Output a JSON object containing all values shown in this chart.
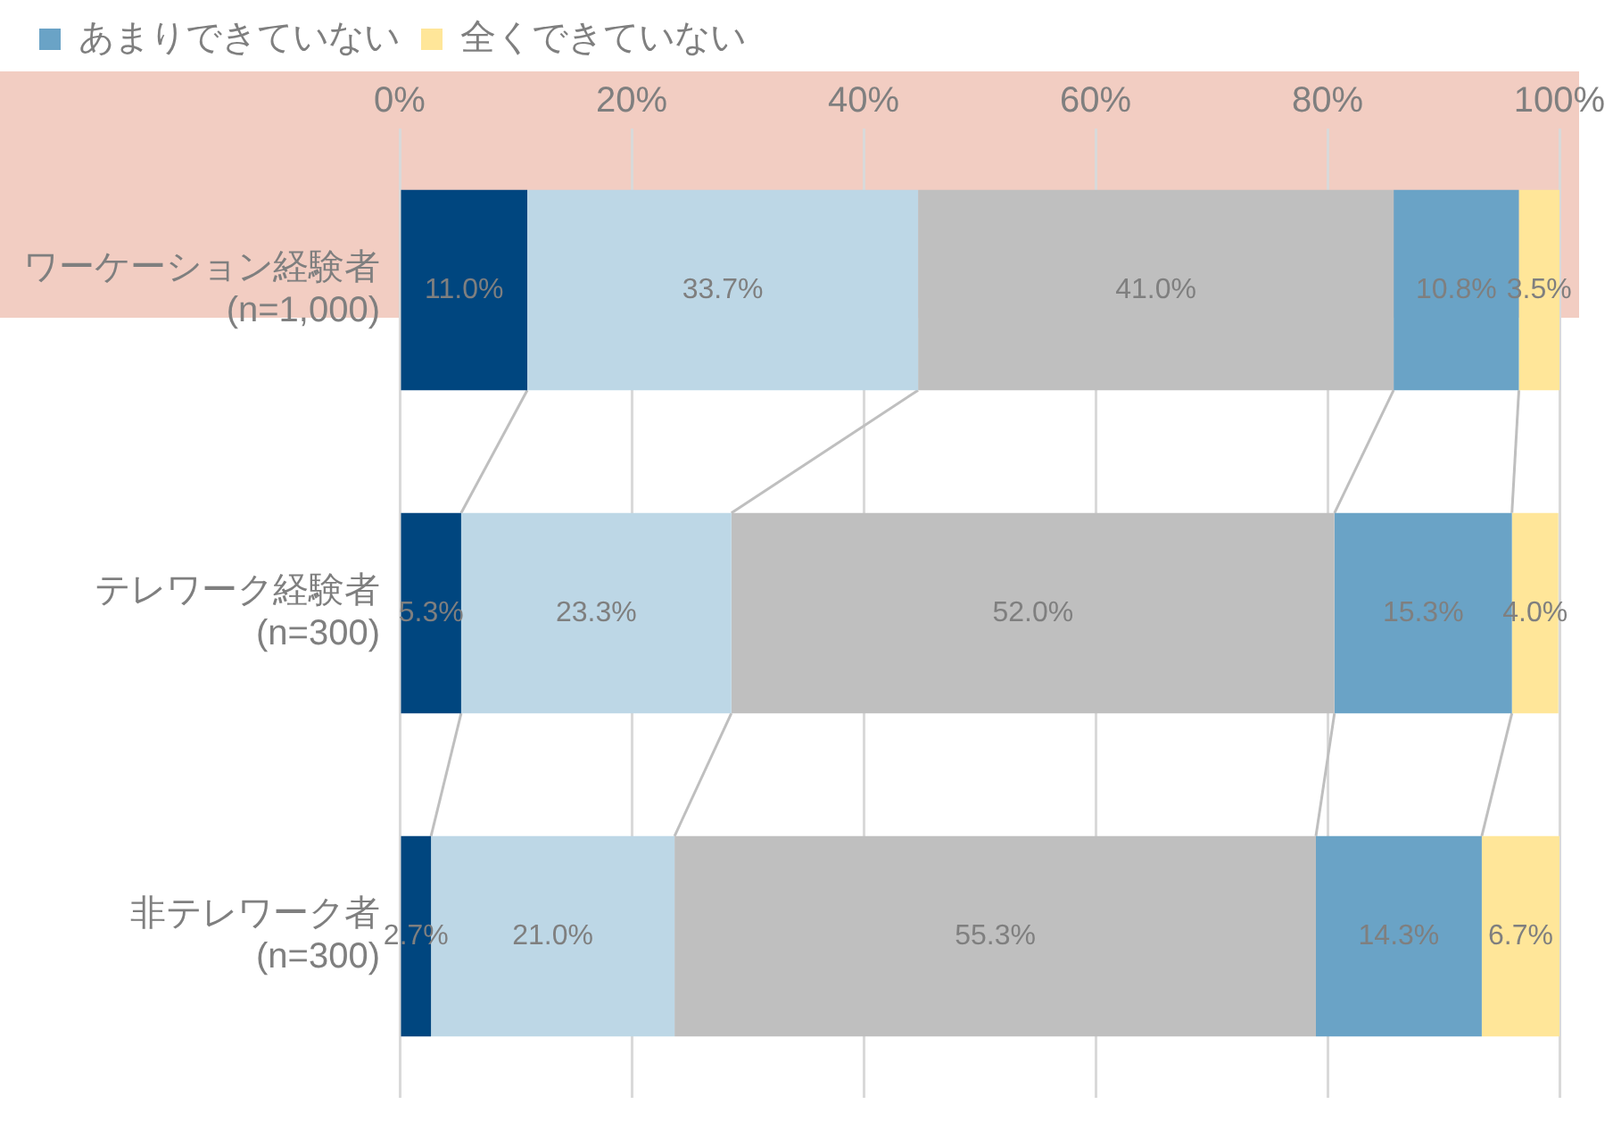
{
  "chart_data": {
    "type": "bar",
    "orientation": "horizontal",
    "stacked": true,
    "categories": [
      "ワーケーション経験者\n(n=1,000)",
      "テレワーク経験者\n(n=300)",
      "非テレワーク者\n(n=300)"
    ],
    "series": [
      {
        "color": "#00467f",
        "values": [
          11.0,
          5.3,
          2.7
        ]
      },
      {
        "color": "#bdd7e6",
        "values": [
          33.7,
          23.3,
          21.0
        ]
      },
      {
        "color": "#bfbfbf",
        "values": [
          41.0,
          52.0,
          55.3
        ]
      },
      {
        "name": "あまりできていない",
        "color": "#6aa3c6",
        "values": [
          10.8,
          15.3,
          14.3
        ]
      },
      {
        "name": "全くできていない",
        "color": "#ffe699",
        "values": [
          3.5,
          4.0,
          6.7
        ]
      }
    ],
    "xlim": [
      0,
      100
    ],
    "xticks": [
      {
        "value": 0,
        "label": "0%"
      },
      {
        "value": 20,
        "label": "20%"
      },
      {
        "value": 40,
        "label": "40%"
      },
      {
        "value": 60,
        "label": "60%"
      },
      {
        "value": 80,
        "label": "80%"
      },
      {
        "value": 100,
        "label": "100%"
      }
    ],
    "value_labels": [
      [
        "11.0%",
        "5.3%",
        "2.7%"
      ],
      [
        "33.7%",
        "23.3%",
        "21.0%"
      ],
      [
        "41.0%",
        "52.0%",
        "55.3%"
      ],
      [
        "10.8%",
        "15.3%",
        "14.3%"
      ],
      [
        "3.5%",
        "4.0%",
        "6.7%"
      ]
    ],
    "grid": "x",
    "legend": "top"
  }
}
